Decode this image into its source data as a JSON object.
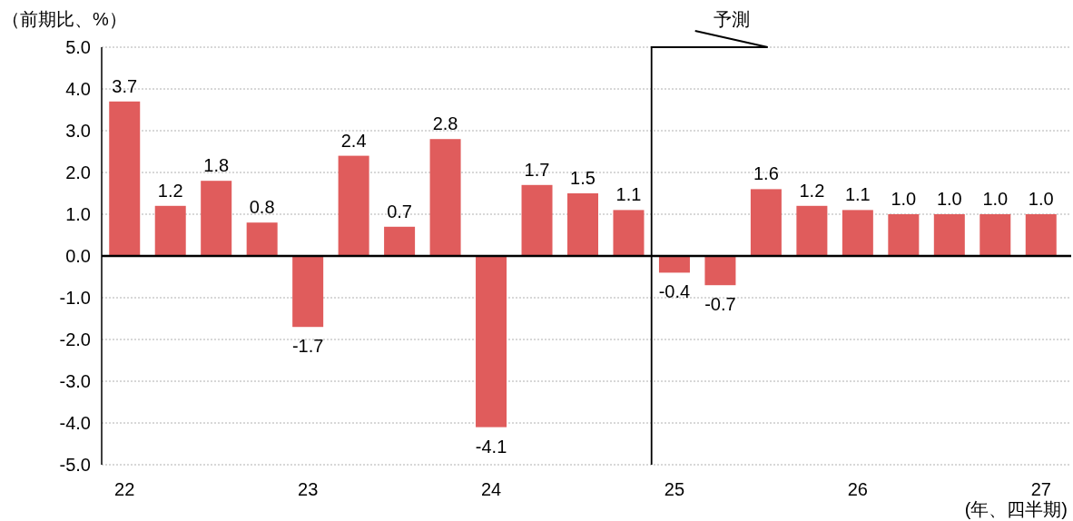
{
  "chart_data": {
    "type": "bar",
    "ylabel": "（前期比、%）",
    "xlabel": "(年、四半期)",
    "categories": [
      "22",
      null,
      null,
      null,
      "23",
      null,
      null,
      null,
      "24",
      null,
      null,
      null,
      "25",
      null,
      null,
      null,
      "26",
      null,
      null,
      null,
      "27"
    ],
    "values": [
      3.7,
      1.2,
      1.8,
      0.8,
      -1.7,
      2.4,
      0.7,
      2.8,
      -4.1,
      1.7,
      1.5,
      1.1,
      -0.4,
      -0.7,
      1.6,
      1.2,
      1.1,
      1.0,
      1.0,
      1.0,
      1.0
    ],
    "value_labels": [
      "3.7",
      "1.2",
      "1.8",
      "0.8",
      "-1.7",
      "2.4",
      "0.7",
      "2.8",
      "-4.1",
      "1.7",
      "1.5",
      "1.1",
      "-0.4",
      "-0.7",
      "1.6",
      "1.2",
      "1.1",
      "1.0",
      "1.0",
      "1.0",
      "1.0"
    ],
    "color": "#e05c5c",
    "grid": "y",
    "ylim": [
      -5,
      5
    ],
    "yticks": [
      {
        "value": -5,
        "label": "-5.0"
      },
      {
        "value": -4,
        "label": "-4.0"
      },
      {
        "value": -3,
        "label": "-3.0"
      },
      {
        "value": -2,
        "label": "-2.0"
      },
      {
        "value": -1,
        "label": "-1.0"
      },
      {
        "value": 0,
        "label": "0.0"
      },
      {
        "value": 1,
        "label": "1.0"
      },
      {
        "value": 2,
        "label": "2.0"
      },
      {
        "value": 3,
        "label": "3.0"
      },
      {
        "value": 4,
        "label": "4.0"
      },
      {
        "value": 5,
        "label": "5.0"
      }
    ],
    "ref_lines": [
      {
        "axis": "x",
        "value": "25",
        "label": "予測",
        "color": "#000000"
      }
    ]
  }
}
